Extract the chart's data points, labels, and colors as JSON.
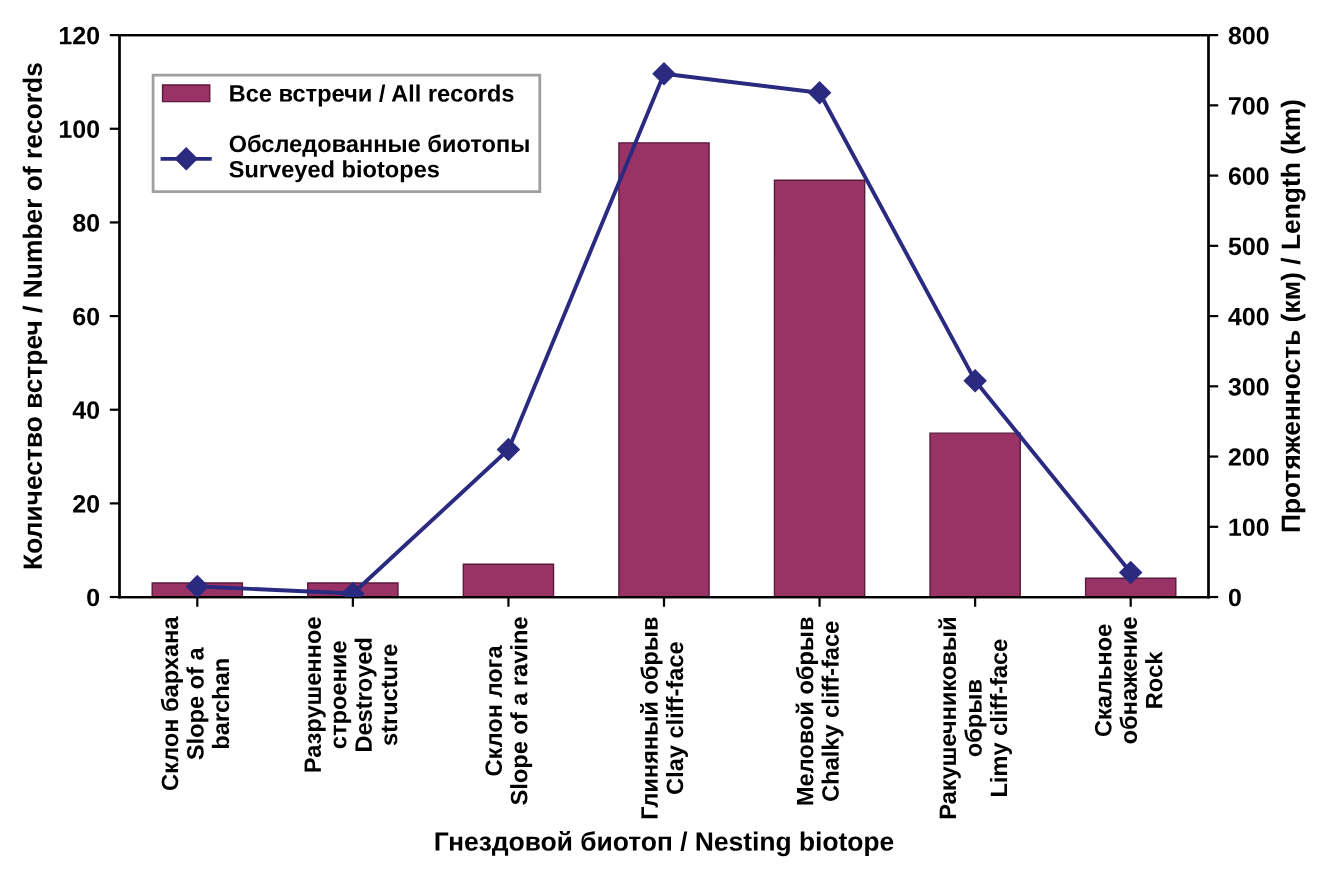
{
  "chart_data": {
    "type": "bar",
    "xlabel": "Гнездовой биотоп / Nesting biotope",
    "ylabel": "Количество встреч / Number of records",
    "y2label": "Протяженность (км) / Length (km)",
    "categories": [
      "Склон бархана\nSlope of a\nbarchan",
      "Разрушенное\nстроение\nDestroyed\nstructure",
      "Склон лога\nSlope of a ravine",
      "Глиняный обрыв\nClay cliff-face",
      "Меловой обрыв\nChalky cliff-face",
      "Ракушечниковый\nобрыв\nLimy cliff-face",
      "Скальное\nобнажение\nRock"
    ],
    "series": [
      {
        "name": "Все встречи / All records",
        "color": "#993366",
        "values": [
          3,
          3,
          7,
          97,
          89,
          35,
          4
        ]
      },
      {
        "name": "Обследованные биотопы\nSurveyed biotopes",
        "type": "line",
        "axis": "y2",
        "color": "#2a2a80",
        "marker": "diamond",
        "line_style": "solid",
        "values": [
          15,
          5,
          210,
          745,
          718,
          308,
          35
        ]
      }
    ],
    "ylim": [
      0,
      120
    ],
    "yticks": [
      0,
      20,
      40,
      60,
      80,
      100,
      120
    ],
    "y2lim": [
      0,
      800
    ],
    "y2ticks": [
      0,
      100,
      200,
      300,
      400,
      500,
      600,
      700,
      800
    ],
    "grid": false,
    "legend": "top left"
  }
}
